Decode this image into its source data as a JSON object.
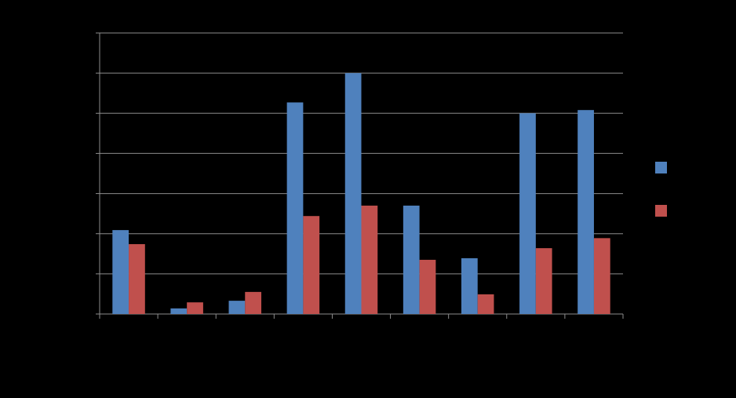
{
  "chart_data": {
    "type": "bar",
    "categories": [
      null,
      null,
      null,
      null,
      null,
      null,
      null,
      null,
      null
    ],
    "series": [
      {
        "color": "#4f81bd",
        "values": [
          20.9,
          1.4,
          3.3,
          52.7,
          60,
          27,
          13.9,
          50,
          50.8
        ]
      },
      {
        "color": "#c0504d",
        "values": [
          17.4,
          2.9,
          5.5,
          24.4,
          27,
          13.5,
          4.9,
          16.4,
          18.9
        ]
      }
    ],
    "ylim": [
      0,
      70
    ],
    "yticks": [
      0,
      10,
      20,
      30,
      40,
      50,
      60,
      70
    ],
    "grid": true,
    "legend": "right"
  }
}
